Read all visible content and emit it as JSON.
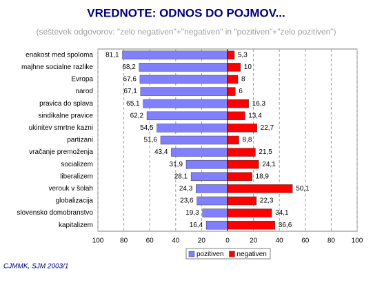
{
  "chart_data": {
    "type": "diverging-bar",
    "title": "VREDNOTE: ODNOS DO POJMOV...",
    "subtitle": "(seštevek odgovorov: \"zelo negativen\"+\"negativen\" in \"pozitiven\"+\"zelo pozitiven\")",
    "footer": "CJMMK, SJM 2003/1",
    "categories": [
      "enakost med spoloma",
      "majhne socialne razlike",
      "Evropa",
      "narod",
      "pravica do splava",
      "sindikalne pravice",
      "ukinitev smrtne kazni",
      "partizani",
      "vračanje premoženja",
      "socializem",
      "liberalizem",
      "verouk v šolah",
      "globalizacija",
      "slovensko domobranstvo",
      "kapitalizem"
    ],
    "series": [
      {
        "name": "pozitiven",
        "color": "#8080ff",
        "side": "left",
        "values": [
          81.1,
          68.2,
          67.6,
          67.1,
          65.1,
          62.2,
          54.5,
          51.6,
          43.4,
          31.9,
          28.1,
          24.3,
          23.6,
          19.3,
          16.4
        ],
        "value_labels": [
          "81,1",
          "68,2",
          "67,6",
          "67,1",
          "65,1",
          "62,2",
          "54,5",
          "51,6",
          "43,4",
          "31,9",
          "28,1",
          "24,3",
          "23,6",
          "19,3",
          "16,4"
        ]
      },
      {
        "name": "negativen",
        "color": "#ff0000",
        "side": "right",
        "values": [
          5.3,
          10,
          8,
          6,
          16.3,
          13.4,
          22.7,
          8.8,
          21.5,
          24.1,
          18.9,
          50.1,
          22.3,
          34.1,
          36.6
        ],
        "value_labels": [
          "5,3",
          "10",
          "8",
          "6",
          "16,3",
          "13,4",
          "22,7",
          "8,8",
          "21,5",
          "24,1",
          "18,9",
          "50,1",
          "22,3",
          "34,1",
          "36,6"
        ]
      }
    ],
    "xlim": [
      0,
      100
    ],
    "xticks": [
      0,
      20,
      40,
      60,
      80,
      100
    ],
    "grid": true,
    "legend": "bottom"
  }
}
